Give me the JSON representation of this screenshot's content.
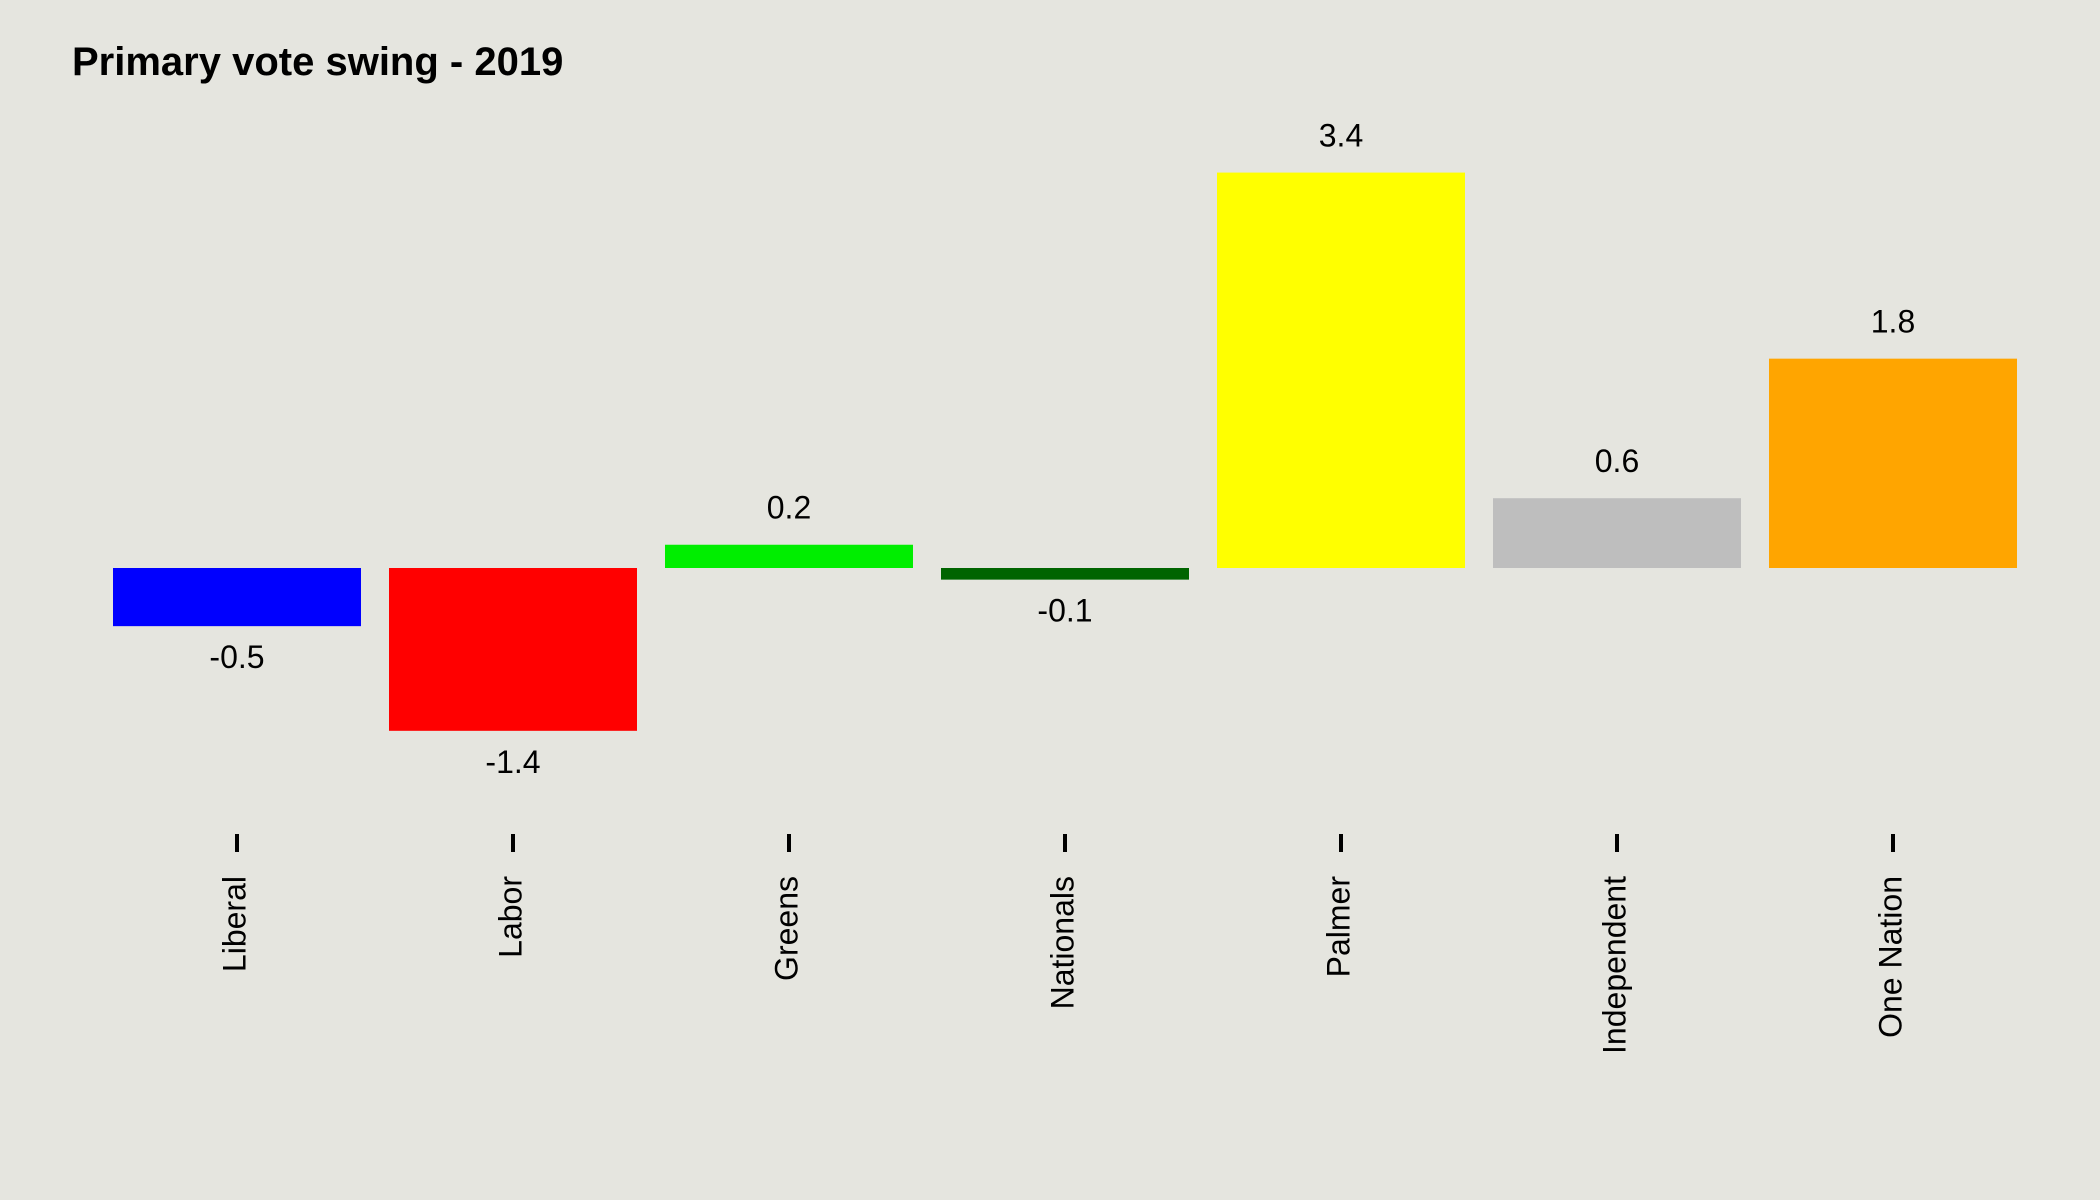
{
  "chart_data": {
    "type": "bar",
    "title": "Primary vote swing - 2019",
    "xlabel": "",
    "ylabel": "",
    "categories": [
      "Liberal",
      "Labor",
      "Greens",
      "Nationals",
      "Palmer",
      "Independent",
      "One Nation"
    ],
    "values": [
      -0.5,
      -1.4,
      0.2,
      -0.1,
      3.4,
      0.6,
      1.8
    ],
    "value_labels": [
      "-0.5",
      "-1.4",
      "0.2",
      "-0.1",
      "3.4",
      "0.6",
      "1.8"
    ],
    "colors": [
      "#0000ff",
      "#ff0000",
      "#00ee00",
      "#006400",
      "#ffff00",
      "#bebebe",
      "#ffa500"
    ],
    "ylim": [
      -2,
      4
    ],
    "grid": false,
    "legend": "none",
    "x_tick_label_rotation": 90,
    "background": "#e5e5df"
  }
}
